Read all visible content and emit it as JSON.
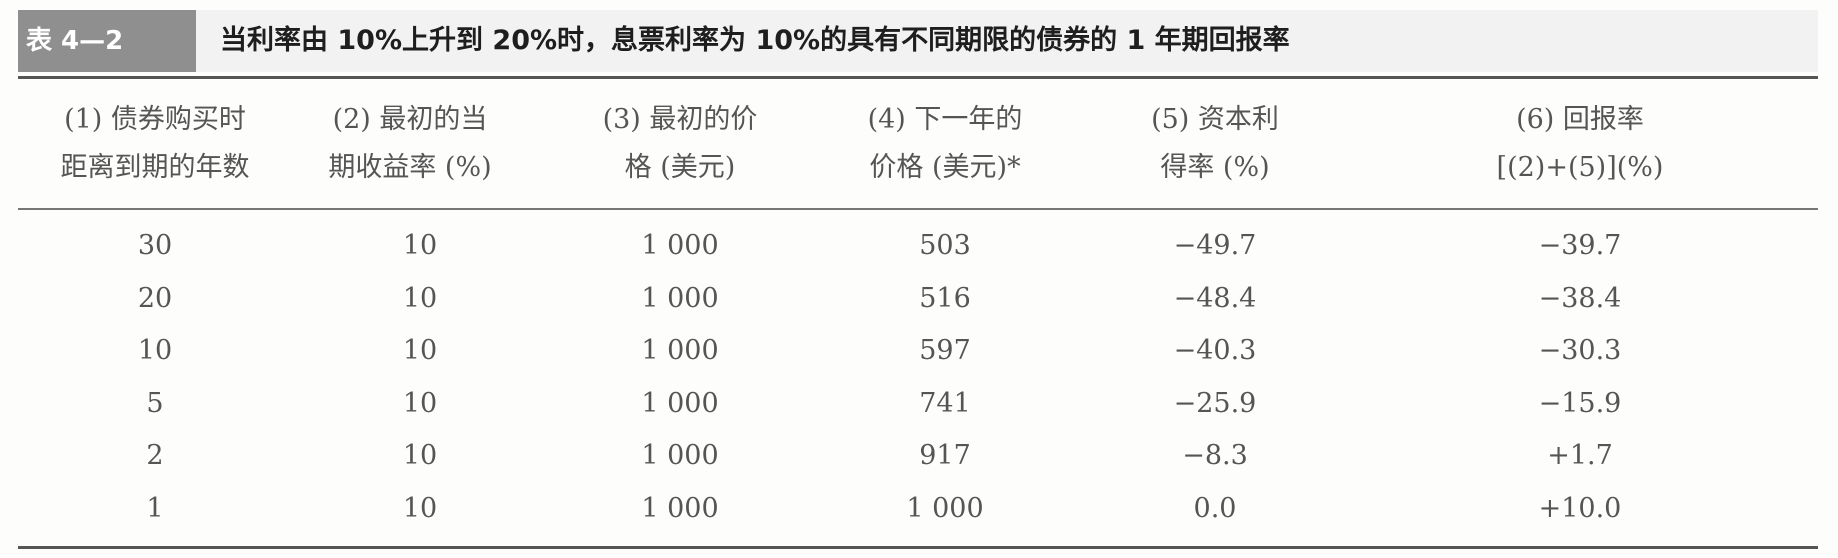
{
  "table": {
    "tag": "表 4—2",
    "title": "当利率由 10%上升到 20%时，息票利率为 10%的具有不同期限的债券的 1 年期回报率",
    "headers": [
      [
        "(1) 债券购买时",
        "距离到期的年数"
      ],
      [
        "(2) 最初的当",
        "期收益率 (%)"
      ],
      [
        "(3) 最初的价",
        "格 (美元)"
      ],
      [
        "(4) 下一年的",
        "价格 (美元)*"
      ],
      [
        "(5) 资本利",
        "得率 (%)"
      ],
      [
        "(6) 回报率",
        "[(2)+(5)](%)"
      ]
    ],
    "rows": [
      [
        "30",
        "10",
        "1 000",
        "503",
        "−49.7",
        "−39.7"
      ],
      [
        "20",
        "10",
        "1 000",
        "516",
        "−48.4",
        "−38.4"
      ],
      [
        "10",
        "10",
        "1 000",
        "597",
        "−40.3",
        "−30.3"
      ],
      [
        "5",
        "10",
        "1 000",
        "741",
        "−25.9",
        "−15.9"
      ],
      [
        "2",
        "10",
        "1 000",
        "917",
        "−8.3",
        "+1.7"
      ],
      [
        "1",
        "10",
        "1 000",
        "1 000",
        "0.0",
        "+10.0"
      ]
    ]
  }
}
